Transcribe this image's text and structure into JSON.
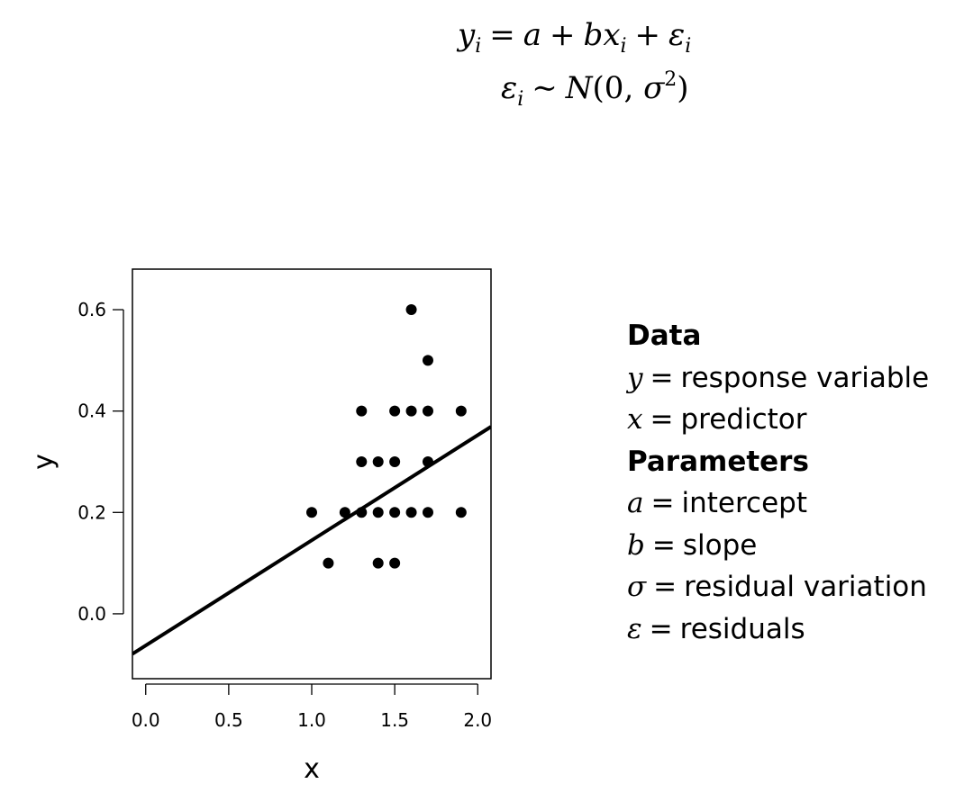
{
  "equation": {
    "line1": {
      "lhs_var": "y",
      "lhs_sub": "i",
      "eq": "=",
      "a": "a",
      "plus1": "+",
      "b": "b",
      "x": "x",
      "x_sub": "i",
      "plus2": "+",
      "eps": "ε",
      "eps_sub": "i"
    },
    "line2": {
      "eps": "ε",
      "eps_sub": "i",
      "sim": "∼",
      "N": "N",
      "open": "(0, ",
      "sigma": "σ",
      "sup": "2",
      "close": ")"
    }
  },
  "legend": {
    "data_heading": "Data",
    "parameters_heading": "Parameters",
    "eq_sign": "=",
    "data_items": [
      {
        "symbol": "y",
        "label": "response variable"
      },
      {
        "symbol": "x",
        "label": "predictor"
      }
    ],
    "parameter_items": [
      {
        "symbol": "a",
        "label": "intercept"
      },
      {
        "symbol": "b",
        "label": "slope"
      },
      {
        "symbol": "σ",
        "label": "residual variation"
      },
      {
        "symbol": "ε",
        "label": "residuals"
      }
    ]
  },
  "chart_data": {
    "type": "scatter",
    "title": "",
    "xlabel": "x",
    "ylabel": "y",
    "xlim": [
      -0.08,
      2.08
    ],
    "ylim": [
      -0.128,
      0.68
    ],
    "x_ticks": [
      0.0,
      0.5,
      1.0,
      1.5,
      2.0
    ],
    "x_tick_labels": [
      "0.0",
      "0.5",
      "1.0",
      "1.5",
      "2.0"
    ],
    "y_ticks": [
      0.0,
      0.2,
      0.4,
      0.6
    ],
    "y_tick_labels": [
      "0.0",
      "0.2",
      "0.4",
      "0.6"
    ],
    "grid": false,
    "points": [
      {
        "x": 1.0,
        "y": 0.2
      },
      {
        "x": 1.1,
        "y": 0.1
      },
      {
        "x": 1.2,
        "y": 0.2
      },
      {
        "x": 1.3,
        "y": 0.2
      },
      {
        "x": 1.3,
        "y": 0.3
      },
      {
        "x": 1.3,
        "y": 0.4
      },
      {
        "x": 1.4,
        "y": 0.1
      },
      {
        "x": 1.4,
        "y": 0.2
      },
      {
        "x": 1.4,
        "y": 0.3
      },
      {
        "x": 1.5,
        "y": 0.1
      },
      {
        "x": 1.5,
        "y": 0.2
      },
      {
        "x": 1.5,
        "y": 0.3
      },
      {
        "x": 1.5,
        "y": 0.4
      },
      {
        "x": 1.6,
        "y": 0.2
      },
      {
        "x": 1.6,
        "y": 0.4
      },
      {
        "x": 1.6,
        "y": 0.6
      },
      {
        "x": 1.7,
        "y": 0.2
      },
      {
        "x": 1.7,
        "y": 0.3
      },
      {
        "x": 1.7,
        "y": 0.4
      },
      {
        "x": 1.7,
        "y": 0.5
      },
      {
        "x": 1.9,
        "y": 0.2
      },
      {
        "x": 1.9,
        "y": 0.4
      }
    ],
    "fit_line": {
      "intercept": -0.0625,
      "slope": 0.2075
    }
  }
}
